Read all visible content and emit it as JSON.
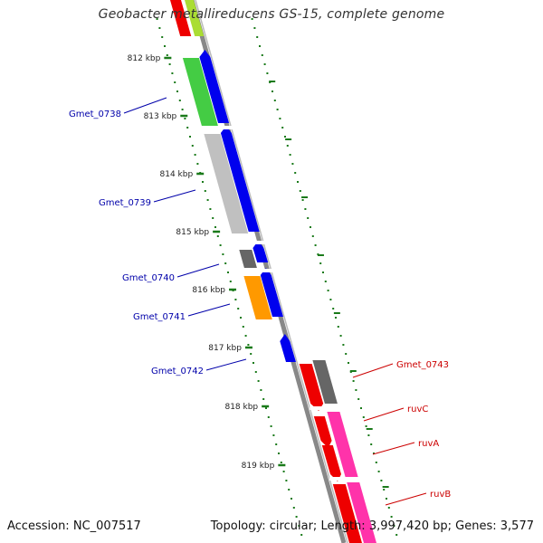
{
  "title": "Geobacter metallireducens GS-15, complete genome",
  "footer": {
    "accession_label": "Accession:",
    "accession": "NC_007517",
    "topology_label": "Topology:",
    "topology": "circular",
    "length_label": "Length:",
    "length": "3,997,420 bp",
    "genes_label": "Genes:",
    "genes": "3,577"
  },
  "ticks": [
    "812 kbp",
    "813 kbp",
    "814 kbp",
    "815 kbp",
    "816 kbp",
    "817 kbp",
    "818 kbp",
    "819 kbp"
  ],
  "gene_labels_left": [
    "Gmet_0738",
    "Gmet_0739",
    "Gmet_0740",
    "Gmet_0741",
    "Gmet_0742"
  ],
  "gene_labels_right": [
    "Gmet_0743",
    "ruvC",
    "ruvA",
    "ruvB"
  ],
  "colors": {
    "left_label": "#0000aa",
    "right_label": "#cc0000",
    "backbone": "#888888",
    "tick_dots": "#1a7a1a",
    "green": "#44cc44",
    "blue": "#0000ee",
    "light_gray": "#c0c0c0",
    "dark_gray": "#666666",
    "orange": "#ff9900",
    "red": "#ee0000",
    "magenta": "#ff33aa",
    "yellow_green": "#aadd33"
  }
}
